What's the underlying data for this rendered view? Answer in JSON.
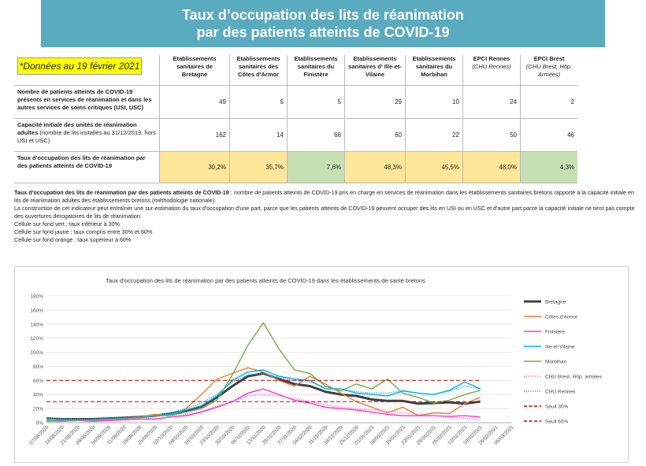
{
  "header": {
    "line1": "Taux d’occupation des lits de réanimation",
    "line2": "par des patients atteints de COVID-19"
  },
  "date_note": "*Données au 19 février 2021",
  "table": {
    "columns": [
      {
        "name": "Etablissements sanitaires de Bretagne",
        "sub": ""
      },
      {
        "name": "Etablissements sanitaires des Côtes d'Armor",
        "sub": ""
      },
      {
        "name": "Etablissements sanitaires du Finistère",
        "sub": ""
      },
      {
        "name": "Etablissements sanitaires d' Ille-et-Vilaine",
        "sub": ""
      },
      {
        "name": "Etablissements sanitaires du Morbihan",
        "sub": ""
      },
      {
        "name": "EPCI Rennes",
        "sub": "(CHU Rennes)"
      },
      {
        "name": "EPCI Brest",
        "sub": "(CHU Brest, Hôp. Armées)"
      }
    ],
    "rows": [
      {
        "label_bold": "Nombre de patients atteints de COVID-19 présents en services de réanimation et dans les autres services de soins critiques (USI, USC)",
        "label_normal": "",
        "values": [
          "49",
          "5",
          "5",
          "29",
          "10",
          "24",
          "2"
        ],
        "colors": [
          "",
          "",
          "",
          "",
          "",
          "",
          ""
        ]
      },
      {
        "label_bold": "Capacité initiale des unités de réanimation adultes",
        "label_normal": " (nombre de lits installés au 31/12/2019, hors USI et USC)",
        "values": [
          "162",
          "14",
          "66",
          "60",
          "22",
          "50",
          "46"
        ],
        "colors": [
          "",
          "",
          "",
          "",
          "",
          "",
          ""
        ]
      },
      {
        "label_bold": "Taux d'occupation des lits de réanimation par des patients atteints de COVID-19",
        "label_normal": "",
        "values": [
          "30,2%",
          "35,7%",
          "7,6%",
          "48,3%",
          "45,5%",
          "48,0%",
          "4,3%"
        ],
        "colors": [
          "yellow",
          "yellow",
          "green",
          "yellow",
          "yellow",
          "yellow",
          "green"
        ]
      }
    ]
  },
  "notes": {
    "def_bold": "Taux d'occupation des lits de réanimation par des patients atteints de COVID-19",
    "def_text": " : nombre de patients atteints de COVID-19 pris en charge en services de réanimation dans les établissements sanitaires bretons rapporté à la capacité initiale en lits de réanimation adultes des établissements bretons (méthodologie nationale).",
    "method": "La construction de cet indicateur peut entraîner une sur-estimation du taux d'occupation d'une part, parce que les patients atteints de COVID-19 peuvent occuper des lits en USI ou en USC et d'autre part parce la capacité initiale ne tient pas compte des ouvertures dérogatoires de lits de réanimation.",
    "green": "Cellule sur fond vert :  taux inférieur à 30%",
    "yellow": "Cellule sur fond jaune : taux compris entre 30% et 60%",
    "orange": "Cellule sur fond orange : taux supérieur à 60%"
  },
  "colors": {
    "banner": "#5aabbf",
    "yellow": "#ffe699",
    "green": "#c6e0b4",
    "orange": "#f4b183",
    "Bretagne": "#404040",
    "Côtes d'Armor": "#ed7d31",
    "Finistère": "#ff33cc",
    "Ille-et-Vilaine": "#00b0f0",
    "Morbihan": "#70ad47",
    "CHU Brest, Hôp. armées": "#ff66cc",
    "CHU Rennes": "#00b0f0",
    "Seuil 30%": "#c00000",
    "Seuil 60%": "#c00000"
  },
  "chart_data": {
    "type": "line",
    "title": "Taux d'occupation des lits de réanimation par des patients atteints de COVID-19 dans les établissements de santé bretons",
    "xlabel": "",
    "ylabel": "",
    "ylim": [
      0,
      180
    ],
    "yticks": [
      "0%",
      "20%",
      "40%",
      "60%",
      "80%",
      "100%",
      "120%",
      "140%",
      "160%",
      "180%"
    ],
    "x": [
      "07/08/2020",
      "14/08/2020",
      "21/08/2020",
      "28/08/2020",
      "04/09/2020",
      "11/09/2020",
      "18/09/2020",
      "25/09/2020",
      "02/10/2020",
      "09/10/2020",
      "16/10/2020",
      "23/10/2020",
      "30/10/2020",
      "06/11/2020",
      "13/11/2020",
      "20/11/2020",
      "27/11/2020",
      "04/12/2020",
      "11/12/2020",
      "18/12/2020",
      "25/12/2020",
      "01/01/2021",
      "08/01/2021",
      "15/01/2021",
      "22/01/2021",
      "29/01/2021",
      "05/02/2021",
      "12/02/2021",
      "19/02/2021",
      "26/02/2021",
      "05/03/2021"
    ],
    "legend_position": "right",
    "series": [
      {
        "name": "Bretagne",
        "style": "solid",
        "width": 3,
        "values": [
          6,
          5,
          5,
          5,
          6,
          7,
          8,
          10,
          13,
          17,
          23,
          36,
          52,
          66,
          70,
          62,
          55,
          52,
          44,
          40,
          38,
          33,
          31,
          31,
          27,
          28,
          29,
          27,
          30,
          null,
          null
        ]
      },
      {
        "name": "Côtes d'Armor",
        "style": "solid",
        "width": 1.4,
        "values": [
          2,
          2,
          3,
          4,
          5,
          6,
          8,
          12,
          10,
          20,
          40,
          62,
          70,
          78,
          72,
          60,
          52,
          66,
          55,
          42,
          30,
          22,
          14,
          22,
          10,
          14,
          13,
          27,
          36,
          null,
          null
        ]
      },
      {
        "name": "Finistère",
        "style": "solid",
        "width": 1.4,
        "values": [
          2,
          3,
          3,
          2,
          3,
          4,
          5,
          5,
          8,
          10,
          15,
          22,
          30,
          42,
          48,
          40,
          32,
          28,
          22,
          20,
          18,
          15,
          12,
          10,
          10,
          10,
          9,
          10,
          8,
          null,
          null
        ]
      },
      {
        "name": "Ille-et-Vilaine",
        "style": "solid",
        "width": 1.4,
        "values": [
          5,
          4,
          4,
          3,
          5,
          6,
          7,
          10,
          12,
          18,
          24,
          38,
          60,
          72,
          75,
          66,
          62,
          60,
          48,
          48,
          42,
          40,
          38,
          45,
          42,
          40,
          46,
          58,
          48,
          null,
          null
        ]
      },
      {
        "name": "Morbihan",
        "style": "solid",
        "width": 1.4,
        "values": [
          3,
          2,
          3,
          4,
          5,
          5,
          8,
          10,
          10,
          15,
          20,
          32,
          68,
          110,
          142,
          105,
          75,
          70,
          52,
          45,
          55,
          48,
          62,
          42,
          36,
          28,
          32,
          40,
          46,
          null,
          null
        ]
      },
      {
        "name": "CHU Brest, Hôp. armées",
        "style": "dotted",
        "width": 1.4,
        "values": [
          4,
          4,
          3,
          3,
          4,
          5,
          6,
          6,
          8,
          12,
          16,
          24,
          30,
          38,
          40,
          38,
          34,
          30,
          26,
          22,
          20,
          18,
          16,
          14,
          12,
          10,
          8,
          6,
          4,
          null,
          null
        ]
      },
      {
        "name": "CHU Rennes",
        "style": "dotted",
        "width": 1.4,
        "values": [
          6,
          6,
          5,
          5,
          6,
          7,
          8,
          10,
          14,
          20,
          28,
          40,
          58,
          68,
          70,
          64,
          60,
          58,
          50,
          48,
          44,
          42,
          42,
          46,
          42,
          40,
          45,
          52,
          48,
          null,
          null
        ]
      },
      {
        "name": "Seuil 30%",
        "style": "dashed",
        "width": 1,
        "values": [
          30,
          30,
          30,
          30,
          30,
          30,
          30,
          30,
          30,
          30,
          30,
          30,
          30,
          30,
          30,
          30,
          30,
          30,
          30,
          30,
          30,
          30,
          30,
          30,
          30,
          30,
          30,
          30,
          30,
          null,
          null
        ]
      },
      {
        "name": "Seuil 60%",
        "style": "dashed",
        "width": 1,
        "values": [
          60,
          60,
          60,
          60,
          60,
          60,
          60,
          60,
          60,
          60,
          60,
          60,
          60,
          60,
          60,
          60,
          60,
          60,
          60,
          60,
          60,
          60,
          60,
          60,
          60,
          60,
          60,
          60,
          60,
          null,
          null
        ]
      }
    ]
  }
}
